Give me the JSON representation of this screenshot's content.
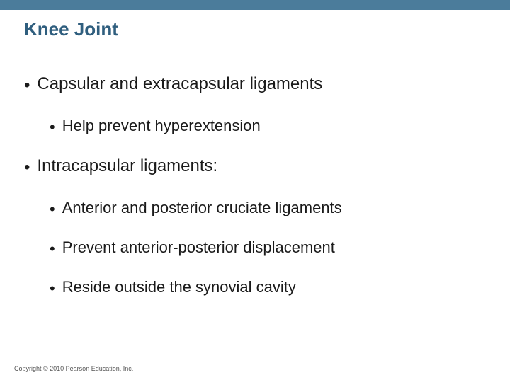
{
  "colors": {
    "top_bar": "#4b7c9b",
    "title": "#2f5e7e",
    "body_text": "#1a1a1a",
    "copyright": "#555555",
    "background": "#ffffff"
  },
  "typography": {
    "title_fontsize": 26,
    "l1_fontsize": 24,
    "l2_fontsize": 22,
    "copyright_fontsize": 9
  },
  "title": "Knee Joint",
  "bullets": [
    {
      "level": 1,
      "text": "Capsular and extracapsular ligaments"
    },
    {
      "level": 2,
      "text": "Help prevent hyperextension"
    },
    {
      "level": 1,
      "text": "Intracapsular ligaments:"
    },
    {
      "level": 2,
      "text": "Anterior and posterior cruciate ligaments"
    },
    {
      "level": 2,
      "text": "Prevent anterior-posterior displacement"
    },
    {
      "level": 2,
      "text": "Reside outside the synovial cavity"
    }
  ],
  "copyright": "Copyright © 2010 Pearson Education, Inc."
}
